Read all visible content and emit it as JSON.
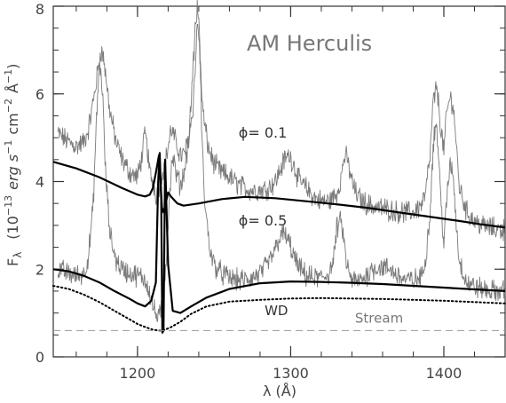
{
  "chart_data": {
    "type": "line",
    "title": "AM Herculis",
    "xlabel": "λ (Å)",
    "ylabel": "F_λ (10^-13 erg s^-1 cm^-2 Å^-1)",
    "ylabel_parts": {
      "f": "F",
      "sub": "λ",
      "open": "(10",
      "exp1": "−13",
      "erg": "erg s",
      "exp2": "−1",
      "cm": "cm",
      "exp3": "−2",
      "ang": "Å",
      "exp4": "−1",
      "close": ")"
    },
    "xlim": [
      1145,
      1440
    ],
    "ylim": [
      0,
      8
    ],
    "xticks": [
      {
        "value": 1200,
        "label": "1200"
      },
      {
        "value": 1300,
        "label": "1300"
      },
      {
        "value": 1400,
        "label": "1400"
      }
    ],
    "yticks": [
      {
        "value": 0,
        "label": "0"
      },
      {
        "value": 2,
        "label": "2"
      },
      {
        "value": 4,
        "label": "4"
      },
      {
        "value": 6,
        "label": "6"
      },
      {
        "value": 8,
        "label": "8"
      }
    ],
    "x_minor_step": 20,
    "y_minor_step": 0.5,
    "annotations": [
      {
        "id": "phase-01",
        "text": "ϕ= 0.1",
        "x": 1266,
        "y": 5.0
      },
      {
        "id": "phase-05",
        "text": "ϕ= 0.5",
        "x": 1266,
        "y": 3.0
      },
      {
        "id": "wd",
        "text": "WD",
        "x": 1283,
        "y": 0.95
      },
      {
        "id": "stream",
        "text": "Stream",
        "x": 1342,
        "y": 0.78
      }
    ],
    "series": [
      {
        "id": "observed-phase-0.1",
        "style": "noisy",
        "color": "#7a7a7a",
        "x": [
          1148,
          1155,
          1160,
          1165,
          1168,
          1171,
          1174,
          1176,
          1178,
          1182,
          1186,
          1190,
          1195,
          1200,
          1203,
          1205,
          1207,
          1208,
          1210,
          1212,
          1214,
          1216,
          1218,
          1220,
          1222,
          1224,
          1226,
          1228,
          1230,
          1233,
          1236,
          1238,
          1239,
          1240,
          1241,
          1243,
          1246,
          1250,
          1255,
          1260,
          1265,
          1270,
          1275,
          1280,
          1285,
          1290,
          1293,
          1296,
          1299,
          1302,
          1305,
          1310,
          1315,
          1320,
          1325,
          1330,
          1333,
          1335,
          1337,
          1340,
          1343,
          1347,
          1352,
          1358,
          1365,
          1370,
          1375,
          1380,
          1385,
          1388,
          1391,
          1393,
          1395,
          1396,
          1398,
          1400,
          1402,
          1404,
          1406,
          1408,
          1410,
          1415,
          1420,
          1425,
          1430,
          1435,
          1440
        ],
        "y": [
          5.1,
          4.9,
          4.8,
          4.9,
          5.2,
          5.8,
          6.5,
          7.0,
          6.8,
          5.6,
          4.9,
          4.5,
          4.2,
          4.1,
          4.6,
          5.1,
          4.6,
          4.2,
          4.0,
          3.7,
          3.9,
          4.2,
          4.4,
          4.8,
          5.2,
          5.0,
          4.8,
          4.6,
          4.6,
          4.9,
          5.6,
          6.8,
          7.6,
          7.4,
          6.6,
          5.5,
          4.8,
          4.4,
          4.2,
          4.1,
          3.95,
          3.85,
          3.8,
          3.8,
          3.85,
          4.0,
          4.25,
          4.5,
          4.6,
          4.4,
          4.05,
          3.85,
          3.65,
          3.55,
          3.55,
          3.7,
          4.1,
          4.6,
          4.5,
          4.0,
          3.7,
          3.55,
          3.45,
          3.4,
          3.35,
          3.3,
          3.3,
          3.3,
          3.45,
          3.7,
          4.6,
          5.8,
          6.1,
          6.0,
          5.2,
          4.7,
          5.6,
          5.9,
          5.8,
          4.9,
          3.9,
          3.3,
          3.1,
          3.0,
          2.95,
          2.9,
          2.9
        ]
      },
      {
        "id": "observed-phase-0.5",
        "style": "noisy",
        "color": "#7a7a7a",
        "x": [
          1148,
          1155,
          1160,
          1165,
          1168,
          1171,
          1173,
          1175,
          1177,
          1179,
          1182,
          1186,
          1190,
          1195,
          1200,
          1204,
          1207,
          1209,
          1211,
          1213,
          1215,
          1216,
          1217,
          1219,
          1221,
          1223,
          1225,
          1228,
          1231,
          1234,
          1236,
          1238,
          1239,
          1240,
          1241,
          1242,
          1244,
          1247,
          1250,
          1255,
          1260,
          1265,
          1270,
          1275,
          1280,
          1285,
          1290,
          1293,
          1296,
          1299,
          1302,
          1305,
          1310,
          1315,
          1320,
          1325,
          1328,
          1330,
          1332,
          1334,
          1336,
          1339,
          1343,
          1348,
          1353,
          1358,
          1365,
          1370,
          1375,
          1380,
          1385,
          1388,
          1391,
          1393,
          1395,
          1396,
          1398,
          1400,
          1402,
          1404,
          1406,
          1408,
          1410,
          1415,
          1420,
          1425,
          1430,
          1435,
          1440
        ],
        "y": [
          2.0,
          1.9,
          1.85,
          1.9,
          2.3,
          3.4,
          5.2,
          6.7,
          6.2,
          4.3,
          2.8,
          2.2,
          2.0,
          1.9,
          1.85,
          1.8,
          1.6,
          1.3,
          1.05,
          0.9,
          0.95,
          1.25,
          1.5,
          2.4,
          3.8,
          4.6,
          4.2,
          3.9,
          4.3,
          5.2,
          6.5,
          7.6,
          7.9,
          7.8,
          6.7,
          5.0,
          3.5,
          2.5,
          2.1,
          1.9,
          1.8,
          1.75,
          1.75,
          1.8,
          1.9,
          2.1,
          2.45,
          2.75,
          2.8,
          2.6,
          2.3,
          2.05,
          1.85,
          1.8,
          1.8,
          1.9,
          2.2,
          2.9,
          3.1,
          2.9,
          2.2,
          1.8,
          1.7,
          1.8,
          2.0,
          2.05,
          2.0,
          1.85,
          1.75,
          1.75,
          1.8,
          2.2,
          3.3,
          4.8,
          5.4,
          4.9,
          3.6,
          2.6,
          3.6,
          4.4,
          4.2,
          3.1,
          2.2,
          1.7,
          1.6,
          1.55,
          1.5,
          1.5,
          1.5
        ]
      },
      {
        "id": "model-phase-0.1",
        "style": "thick",
        "color": "#000000",
        "x": [
          1145,
          1160,
          1175,
          1190,
          1200,
          1205,
          1208,
          1210,
          1212,
          1214,
          1216,
          1217,
          1218,
          1220,
          1222,
          1226,
          1230,
          1240,
          1255,
          1270,
          1290,
          1310,
          1330,
          1350,
          1370,
          1390,
          1410,
          1425,
          1440
        ],
        "y": [
          4.45,
          4.3,
          4.1,
          3.85,
          3.7,
          3.66,
          3.7,
          3.85,
          4.2,
          4.6,
          3.4,
          3.3,
          3.45,
          3.75,
          3.65,
          3.5,
          3.45,
          3.5,
          3.6,
          3.65,
          3.62,
          3.55,
          3.48,
          3.4,
          3.3,
          3.2,
          3.1,
          3.02,
          2.95
        ]
      },
      {
        "id": "model-phase-0.5",
        "style": "thick",
        "color": "#000000",
        "x": [
          1145,
          1155,
          1165,
          1175,
          1185,
          1195,
          1200,
          1205,
          1209,
          1212,
          1213.5,
          1214.5,
          1215.5,
          1216.2,
          1217,
          1218,
          1220,
          1223,
          1228,
          1235,
          1245,
          1260,
          1280,
          1300,
          1320,
          1340,
          1360,
          1380,
          1400,
          1420,
          1440
        ],
        "y": [
          2.0,
          1.95,
          1.85,
          1.7,
          1.5,
          1.32,
          1.22,
          1.15,
          1.28,
          1.7,
          4.0,
          4.65,
          3.6,
          0.55,
          0.6,
          4.5,
          2.1,
          1.05,
          1.0,
          1.15,
          1.35,
          1.55,
          1.68,
          1.72,
          1.71,
          1.69,
          1.66,
          1.62,
          1.58,
          1.54,
          1.5
        ]
      },
      {
        "id": "white-dwarf",
        "style": "dotted",
        "color": "#000000",
        "x": [
          1145,
          1155,
          1165,
          1175,
          1185,
          1195,
          1200,
          1205,
          1210,
          1214,
          1216,
          1218,
          1222,
          1228,
          1235,
          1245,
          1260,
          1280,
          1300,
          1320,
          1340,
          1360,
          1380,
          1400,
          1420,
          1440
        ],
        "y": [
          1.62,
          1.55,
          1.42,
          1.25,
          1.05,
          0.85,
          0.75,
          0.68,
          0.62,
          0.6,
          0.6,
          0.62,
          0.68,
          0.8,
          0.98,
          1.15,
          1.26,
          1.3,
          1.33,
          1.34,
          1.33,
          1.32,
          1.3,
          1.28,
          1.25,
          1.22
        ]
      },
      {
        "id": "stream",
        "style": "dashed",
        "color": "#9a9a9a",
        "x": [
          1145,
          1440
        ],
        "y": [
          0.6,
          0.6
        ]
      }
    ]
  }
}
